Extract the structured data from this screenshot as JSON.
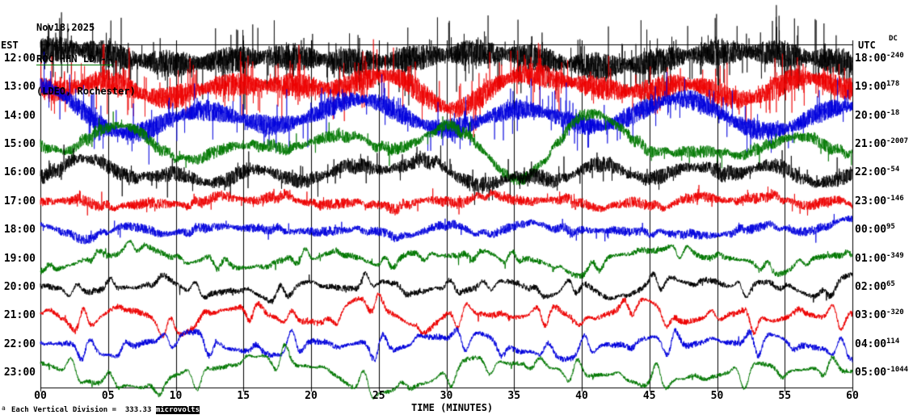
{
  "header": {
    "date": "Nov18,2025",
    "station": "ROC HHN LD --",
    "network": "(LDEO, Rochester)"
  },
  "axes": {
    "left_label": "EST",
    "right_label": "UTC",
    "dc_label": "DC",
    "x_label": "TIME (MINUTES)"
  },
  "footer": {
    "marker": "a",
    "scale_text": "Each Vertical Division =  333.33 ",
    "unit_highlight": "microvolts"
  },
  "chart_data": {
    "type": "line",
    "title": "ROC HHN LD -- (LDEO, Rochester) helicorder seismogram, Nov18,2025",
    "xlabel": "TIME (MINUTES)",
    "x_ticks": [
      "00",
      "05",
      "10",
      "15",
      "20",
      "25",
      "30",
      "35",
      "40",
      "45",
      "50",
      "55",
      "60"
    ],
    "x_range_minutes": [
      0,
      60
    ],
    "minutes_per_row": 60,
    "vertical_division_microvolts": 333.33,
    "grid": true,
    "trace_colors": {
      "black": "#000000",
      "red": "#ee0000",
      "blue": "#0000dd",
      "green": "#007700"
    },
    "rows": [
      {
        "est": "12:00",
        "utc": "18:00",
        "dc": "-240",
        "color": "black",
        "params": {
          "noise": 17,
          "wander": 7,
          "osc": 0,
          "osc_period": 2.0,
          "spike_prob": 0.1,
          "spike_amp": 52,
          "samples": 6000,
          "seed": 11,
          "lw": 0.7
        }
      },
      {
        "est": "13:00",
        "utc": "19:00",
        "dc": "178",
        "color": "red",
        "params": {
          "noise": 15,
          "wander": 12,
          "osc": 0,
          "osc_period": 2.0,
          "spike_prob": 0.09,
          "spike_amp": 46,
          "samples": 6000,
          "seed": 22,
          "lw": 0.7
        }
      },
      {
        "est": "14:00",
        "utc": "20:00",
        "dc": "-18",
        "color": "blue",
        "params": {
          "noise": 13,
          "wander": 17,
          "osc": 0,
          "osc_period": 2.0,
          "spike_prob": 0.07,
          "spike_amp": 40,
          "samples": 6000,
          "seed": 33,
          "lw": 0.7
        }
      },
      {
        "est": "15:00",
        "utc": "21:00",
        "dc": "-2007",
        "color": "green",
        "params": {
          "noise": 8,
          "wander": 14,
          "osc": 3,
          "osc_period": 1.6,
          "spike_prob": 0.03,
          "spike_amp": 22,
          "samples": 4000,
          "seed": 44,
          "lw": 0.8
        }
      },
      {
        "est": "16:00",
        "utc": "22:00",
        "dc": "-54",
        "color": "black",
        "params": {
          "noise": 10,
          "wander": 8,
          "osc": 2,
          "osc_period": 1.8,
          "spike_prob": 0.05,
          "spike_amp": 26,
          "samples": 4000,
          "seed": 55,
          "lw": 0.8
        }
      },
      {
        "est": "17:00",
        "utc": "23:00",
        "dc": "-146",
        "color": "red",
        "params": {
          "noise": 7,
          "wander": 6,
          "osc": 3,
          "osc_period": 1.7,
          "spike_prob": 0.03,
          "spike_amp": 16,
          "samples": 4000,
          "seed": 66,
          "lw": 0.8
        }
      },
      {
        "est": "18:00",
        "utc": "00:00",
        "dc": "95",
        "color": "blue",
        "params": {
          "noise": 6,
          "wander": 5,
          "osc": 3,
          "osc_period": 1.9,
          "spike_prob": 0.02,
          "spike_amp": 14,
          "samples": 4000,
          "seed": 77,
          "lw": 0.8
        }
      },
      {
        "est": "19:00",
        "utc": "01:00",
        "dc": "-349",
        "color": "green",
        "params": {
          "noise": 4,
          "wander": 6,
          "osc": 8,
          "osc_period": 1.9,
          "spike_prob": 0.01,
          "spike_amp": 10,
          "samples": 3000,
          "seed": 88,
          "lw": 1.0
        }
      },
      {
        "est": "20:00",
        "utc": "02:00",
        "dc": "65",
        "color": "black",
        "params": {
          "noise": 4,
          "wander": 6,
          "osc": 9,
          "osc_period": 2.1,
          "spike_prob": 0.01,
          "spike_amp": 10,
          "samples": 3000,
          "seed": 99,
          "lw": 1.0
        }
      },
      {
        "est": "21:00",
        "utc": "03:00",
        "dc": "-320",
        "color": "red",
        "params": {
          "noise": 4,
          "wander": 7,
          "osc": 13,
          "osc_period": 2.2,
          "spike_prob": 0.008,
          "spike_amp": 9,
          "samples": 3000,
          "seed": 110,
          "lw": 1.0
        }
      },
      {
        "est": "22:00",
        "utc": "04:00",
        "dc": "114",
        "color": "blue",
        "params": {
          "noise": 4,
          "wander": 7,
          "osc": 15,
          "osc_period": 2.4,
          "spike_prob": 0.008,
          "spike_amp": 9,
          "samples": 3000,
          "seed": 121,
          "lw": 1.0
        }
      },
      {
        "est": "23:00",
        "utc": "05:00",
        "dc": "-1044",
        "color": "green",
        "params": {
          "noise": 3,
          "wander": 12,
          "osc": 16,
          "osc_period": 2.7,
          "spike_prob": 0.005,
          "spike_amp": 8,
          "samples": 3000,
          "seed": 132,
          "lw": 1.0
        }
      }
    ]
  }
}
